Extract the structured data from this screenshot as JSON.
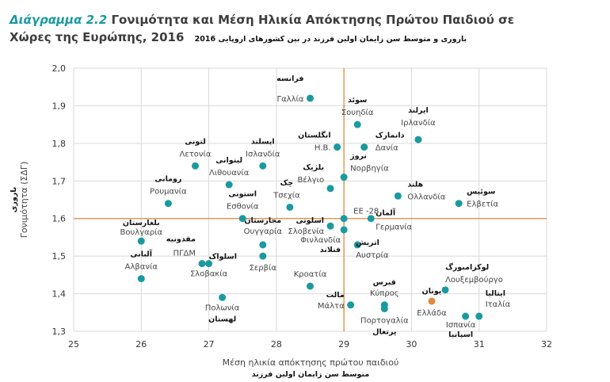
{
  "title": {
    "prefix": "Διάγραμμα 2.2",
    "line1": "Γονιμότητα και Μέση Ηλικία Απόκτησης Πρώτου Παιδιού σε",
    "line2": "Χώρες της Ευρώπης, 2016",
    "farsi": "باروری و متوسط سن زایمان اولین فرزند در بین کشورهای اروپایی 2016"
  },
  "colors": {
    "point": "#1a9aa0",
    "highlight": "#e08a3c",
    "refline": "#e08a3c",
    "grid": "#d9d9d9"
  },
  "chart_data": {
    "type": "scatter",
    "xlabel": "Μέση ηλικία απόκτησης πρώτου παιδιού",
    "xlabel_farsi": "متوسط سن زایمان اولین فرزند",
    "ylabel": "Γονιμότητα (ΣΔΓ)",
    "ylabel_farsi": "باروری",
    "xlim": [
      25,
      32
    ],
    "ylim": [
      1.3,
      2.0
    ],
    "xticks": [
      "25",
      "26",
      "27",
      "28",
      "29",
      "30",
      "31",
      "32"
    ],
    "yticks": [
      "1,3",
      "1,4",
      "1,5",
      "1,6",
      "1,7",
      "1,8",
      "1,9",
      "2,0"
    ],
    "reference": {
      "x": 29.0,
      "y": 1.6,
      "label": "EE -28"
    },
    "points": [
      {
        "x": 28.5,
        "y": 1.92,
        "label": "Γαλλία",
        "farsi": "فرانسه"
      },
      {
        "x": 29.2,
        "y": 1.85,
        "label": "Σουηδία",
        "farsi": "سوئد"
      },
      {
        "x": 30.1,
        "y": 1.81,
        "label": "Ιρλανδία",
        "farsi": "ایرلند"
      },
      {
        "x": 28.9,
        "y": 1.79,
        "label": "Η.Β.",
        "farsi": "انگلستان"
      },
      {
        "x": 29.3,
        "y": 1.79,
        "label": "Δανία",
        "farsi": "دانمارک"
      },
      {
        "x": 26.8,
        "y": 1.74,
        "label": "Λετονία",
        "farsi": "لتونی"
      },
      {
        "x": 27.8,
        "y": 1.74,
        "label": "Ισλανδία",
        "farsi": "ایسلند"
      },
      {
        "x": 27.3,
        "y": 1.69,
        "label": "Λιθουανία",
        "farsi": "لیتوانی"
      },
      {
        "x": 29.0,
        "y": 1.71,
        "label": "Νορβηγία",
        "farsi": "نروژ"
      },
      {
        "x": 28.8,
        "y": 1.68,
        "label": "Βέλγιο",
        "farsi": "بلژیک"
      },
      {
        "x": 29.8,
        "y": 1.66,
        "label": "Ολλανδία",
        "farsi": "هلند"
      },
      {
        "x": 26.4,
        "y": 1.64,
        "label": "Ρουμανία",
        "farsi": "رومانی"
      },
      {
        "x": 30.7,
        "y": 1.64,
        "label": "Ελβετία",
        "farsi": "سوئیس"
      },
      {
        "x": 28.2,
        "y": 1.63,
        "label": "Τσεχία",
        "farsi": "چک"
      },
      {
        "x": 27.5,
        "y": 1.6,
        "label": "Εσθονία",
        "farsi": "استونی"
      },
      {
        "x": 29.4,
        "y": 1.6,
        "label": "Γερμανία",
        "farsi": "آلمان"
      },
      {
        "x": 28.8,
        "y": 1.58,
        "label": "Σλοβενία",
        "farsi": "اسلونی"
      },
      {
        "x": 29.0,
        "y": 1.57,
        "label": "Φινλανδία",
        "farsi": "فنلاند"
      },
      {
        "x": 26.0,
        "y": 1.54,
        "label": "Βουλγαρία",
        "farsi": "بلغارستان"
      },
      {
        "x": 27.8,
        "y": 1.53,
        "label": "Ουγγαρία",
        "farsi": "مجارستان"
      },
      {
        "x": 29.2,
        "y": 1.53,
        "label": "Αυστρία",
        "farsi": "اتریش"
      },
      {
        "x": 27.8,
        "y": 1.5,
        "label": "Σερβία",
        "farsi": ""
      },
      {
        "x": 26.9,
        "y": 1.48,
        "label": "ΠΓΔΜ",
        "farsi": "مقدونیه"
      },
      {
        "x": 27.0,
        "y": 1.48,
        "label": "Σλοβακία",
        "farsi": "اسلواک"
      },
      {
        "x": 26.0,
        "y": 1.44,
        "label": "Αλβανία",
        "farsi": "آلبانی"
      },
      {
        "x": 28.5,
        "y": 1.42,
        "label": "Κροατία",
        "farsi": ""
      },
      {
        "x": 30.5,
        "y": 1.41,
        "label": "Λουξεμβούργο",
        "farsi": "لوکزامبورگ"
      },
      {
        "x": 27.2,
        "y": 1.39,
        "label": "Πολωνία",
        "farsi": "لهستان"
      },
      {
        "x": 30.3,
        "y": 1.38,
        "label": "Ελλάδα",
        "farsi": "یونان",
        "highlight": true
      },
      {
        "x": 29.1,
        "y": 1.37,
        "label": "Μάλτα",
        "farsi": "مالت"
      },
      {
        "x": 29.6,
        "y": 1.37,
        "label": "Κύπρος",
        "farsi": "قبرس"
      },
      {
        "x": 29.6,
        "y": 1.36,
        "label": "Πορτογαλία",
        "farsi": "پرتغال"
      },
      {
        "x": 30.8,
        "y": 1.34,
        "label": "Ισπανία",
        "farsi": "اسپانیا"
      },
      {
        "x": 31.0,
        "y": 1.34,
        "label": "Ιταλία",
        "farsi": "ایتالیا"
      }
    ]
  }
}
